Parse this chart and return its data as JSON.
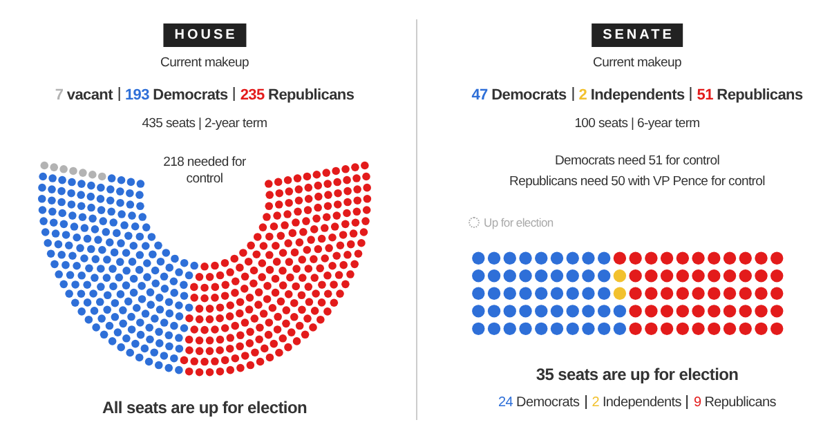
{
  "chart_data": [
    {
      "type": "other",
      "title": "HOUSE",
      "data_labels": true,
      "categories": [
        "vacant",
        "Democrats",
        "Republicans"
      ],
      "colors": [
        "#b3b3b3",
        "#2e6fd8",
        "#e31b1b"
      ],
      "series": [
        {
          "name": "Current makeup",
          "values": [
            7,
            193,
            235
          ]
        }
      ],
      "annotations": [
        "435 seats | 2-year term",
        "218 needed for control",
        "All seats are up for election"
      ]
    },
    {
      "type": "other",
      "title": "SENATE",
      "data_labels": true,
      "categories": [
        "Democrats",
        "Independents",
        "Republicans"
      ],
      "colors": [
        "#2e6fd8",
        "#f2c12e",
        "#e31b1b"
      ],
      "series": [
        {
          "name": "Current makeup",
          "values": [
            47,
            2,
            51
          ]
        },
        {
          "name": "35 seats are up for election",
          "values": [
            24,
            2,
            9
          ]
        }
      ],
      "annotations": [
        "100 seats | 6-year term",
        "Democrats need 51 for control",
        "Republicans need 50 with VP Pence for control",
        "Up for election"
      ]
    }
  ]
}
